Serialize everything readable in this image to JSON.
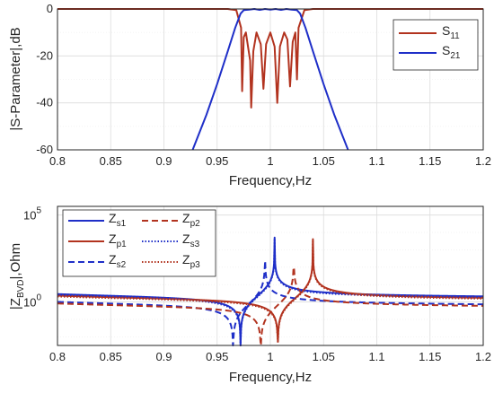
{
  "chart_data": [
    {
      "type": "line",
      "xlabel": "Frequency,Hz",
      "ylabel": "|S-Parameter|,dB",
      "xlim": [
        0.8,
        1.2
      ],
      "ylim": [
        -60,
        0
      ],
      "xticks": [
        "0.8",
        "0.85",
        "0.9",
        "0.95",
        "1",
        "1.05",
        "1.1",
        "1.15",
        "1.2"
      ],
      "yticks": [
        "0",
        "-20",
        "-40",
        "-60"
      ],
      "grid": true,
      "legend_position": "top-right",
      "series": [
        {
          "name": "S",
          "subscript": "11",
          "color": "#b2331f",
          "style": "solid",
          "points": [
            [
              0.8,
              0
            ],
            [
              0.96,
              0
            ],
            [
              0.968,
              -0.5
            ],
            [
              0.9725,
              -8
            ],
            [
              0.9735,
              -35
            ],
            [
              0.975,
              -12
            ],
            [
              0.977,
              -10
            ],
            [
              0.981,
              -22
            ],
            [
              0.982,
              -42
            ],
            [
              0.984,
              -18
            ],
            [
              0.987,
              -10
            ],
            [
              0.991,
              -15
            ],
            [
              0.9935,
              -34
            ],
            [
              0.996,
              -15
            ],
            [
              1.0,
              -10
            ],
            [
              1.004,
              -16
            ],
            [
              1.0065,
              -40
            ],
            [
              1.009,
              -16
            ],
            [
              1.013,
              -10
            ],
            [
              1.016,
              -13
            ],
            [
              1.0185,
              -33
            ],
            [
              1.021,
              -14
            ],
            [
              1.0235,
              -10
            ],
            [
              1.025,
              -30
            ],
            [
              1.0265,
              -8
            ],
            [
              1.032,
              -0.5
            ],
            [
              1.04,
              0
            ],
            [
              1.2,
              0
            ]
          ]
        },
        {
          "name": "S",
          "subscript": "21",
          "color": "#1f2fc8",
          "style": "solid",
          "points": [
            [
              0.927,
              -60
            ],
            [
              0.94,
              -45
            ],
            [
              0.95,
              -32
            ],
            [
              0.96,
              -18
            ],
            [
              0.967,
              -8
            ],
            [
              0.972,
              -2
            ],
            [
              0.975,
              -0.5
            ],
            [
              0.98,
              -0.3
            ],
            [
              0.985,
              0.2
            ],
            [
              0.99,
              -0.4
            ],
            [
              0.995,
              0.2
            ],
            [
              1.0,
              -0.3
            ],
            [
              1.005,
              0.2
            ],
            [
              1.01,
              -0.4
            ],
            [
              1.015,
              0.2
            ],
            [
              1.02,
              -0.3
            ],
            [
              1.025,
              -0.5
            ],
            [
              1.028,
              -2
            ],
            [
              1.033,
              -8
            ],
            [
              1.04,
              -18
            ],
            [
              1.05,
              -32
            ],
            [
              1.06,
              -45
            ],
            [
              1.073,
              -60
            ]
          ]
        }
      ]
    },
    {
      "type": "line",
      "xlabel": "Frequency,Hz",
      "ylabel": "|Z",
      "ylabel_sub": "BVD",
      "ylabel_tail": "|,Ohm",
      "xlim": [
        0.8,
        1.2
      ],
      "ylim_log10": [
        -2.5,
        5.5
      ],
      "xticks": [
        "0.8",
        "0.85",
        "0.9",
        "0.95",
        "1",
        "1.05",
        "1.1",
        "1.15",
        "1.2"
      ],
      "yticks": [
        {
          "base": "10",
          "exp": "5",
          "log": 5
        },
        {
          "base": "10",
          "exp": "0",
          "log": 0
        }
      ],
      "scale": "log",
      "grid": true,
      "legend_position": "top-left",
      "series": [
        {
          "name": "Z",
          "subscript": "s1",
          "color": "#1f2fc8",
          "style": "solid",
          "fr": 0.972,
          "fa": 1.004,
          "k": 0.35
        },
        {
          "name": "Z",
          "subscript": "p1",
          "color": "#b2331f",
          "style": "solid",
          "fr": 1.007,
          "fa": 1.04,
          "k": 0.25
        },
        {
          "name": "Z",
          "subscript": "s2",
          "color": "#1f2fc8",
          "style": "dashed",
          "fr": 0.965,
          "fa": 0.995,
          "k": -0.1
        },
        {
          "name": "Z",
          "subscript": "p2",
          "color": "#b2331f",
          "style": "dashed",
          "fr": 0.991,
          "fa": 1.022,
          "k": -0.2
        },
        {
          "name": "Z",
          "subscript": "s3",
          "color": "#1f2fc8",
          "style": "dotted",
          "fr": 0.972,
          "fa": 1.004,
          "k": 0.3
        },
        {
          "name": "Z",
          "subscript": "p3",
          "color": "#b2331f",
          "style": "dotted",
          "fr": 1.007,
          "fa": 1.04,
          "k": 0.2
        }
      ]
    }
  ]
}
